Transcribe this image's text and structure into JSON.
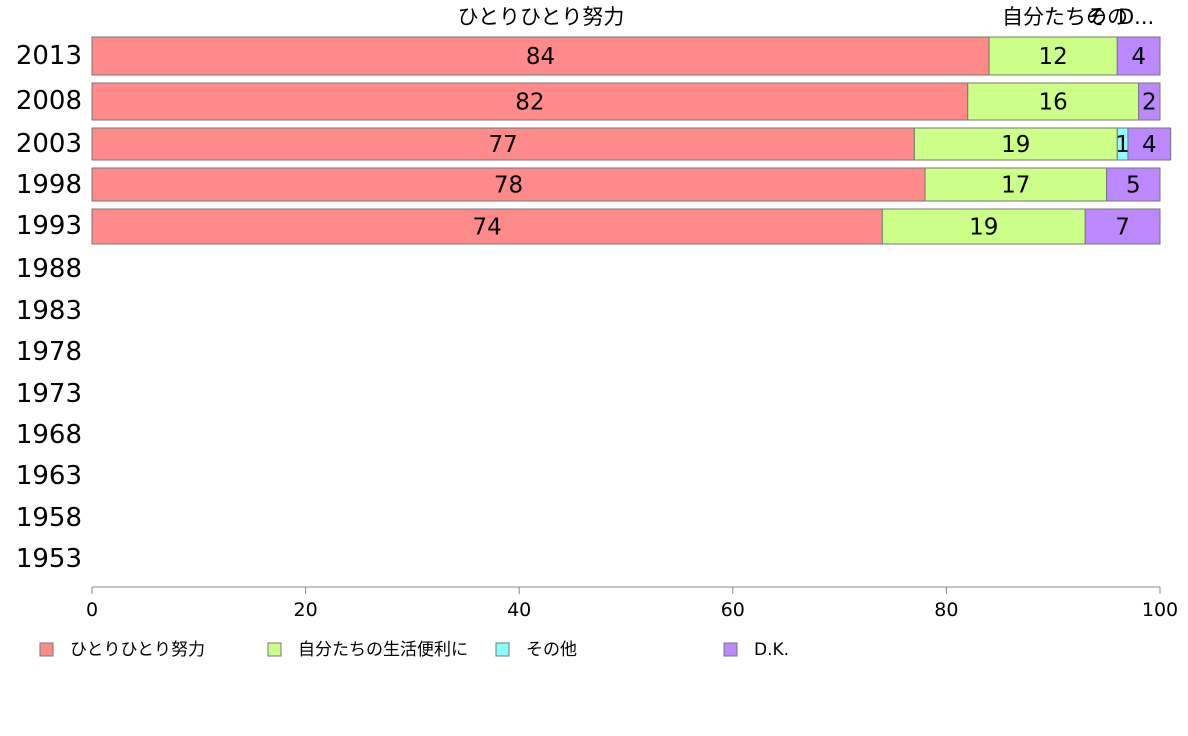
{
  "chart_data": {
    "type": "bar",
    "orientation": "horizontal",
    "stacked": true,
    "categories": [
      "2013",
      "2008",
      "2003",
      "1998",
      "1993",
      "1988",
      "1983",
      "1978",
      "1973",
      "1968",
      "1963",
      "1958",
      "1953"
    ],
    "series": [
      {
        "name": "ひとりひとり努力",
        "color": "#ff8a8a",
        "values": [
          84,
          82,
          77,
          78,
          74,
          null,
          null,
          null,
          null,
          null,
          null,
          null,
          null
        ]
      },
      {
        "name": "自分たちの生活便利に",
        "color": "#ccff88",
        "values": [
          12,
          16,
          19,
          17,
          19,
          null,
          null,
          null,
          null,
          null,
          null,
          null,
          null
        ]
      },
      {
        "name": "その他",
        "color": "#88ffff",
        "values": [
          0,
          0,
          1,
          0,
          0,
          null,
          null,
          null,
          null,
          null,
          null,
          null,
          null
        ]
      },
      {
        "name": "D.K.",
        "color": "#bb88ff",
        "values": [
          4,
          2,
          4,
          5,
          7,
          null,
          null,
          null,
          null,
          null,
          null,
          null,
          null
        ]
      }
    ],
    "top_labels": [
      "ひとりひとり努力",
      "自分たちの",
      "その",
      "D..."
    ],
    "xlim": [
      0,
      100
    ],
    "xticks": [
      "0",
      "20",
      "40",
      "60",
      "80",
      "100"
    ],
    "grid": false,
    "legend_position": "bottom"
  }
}
